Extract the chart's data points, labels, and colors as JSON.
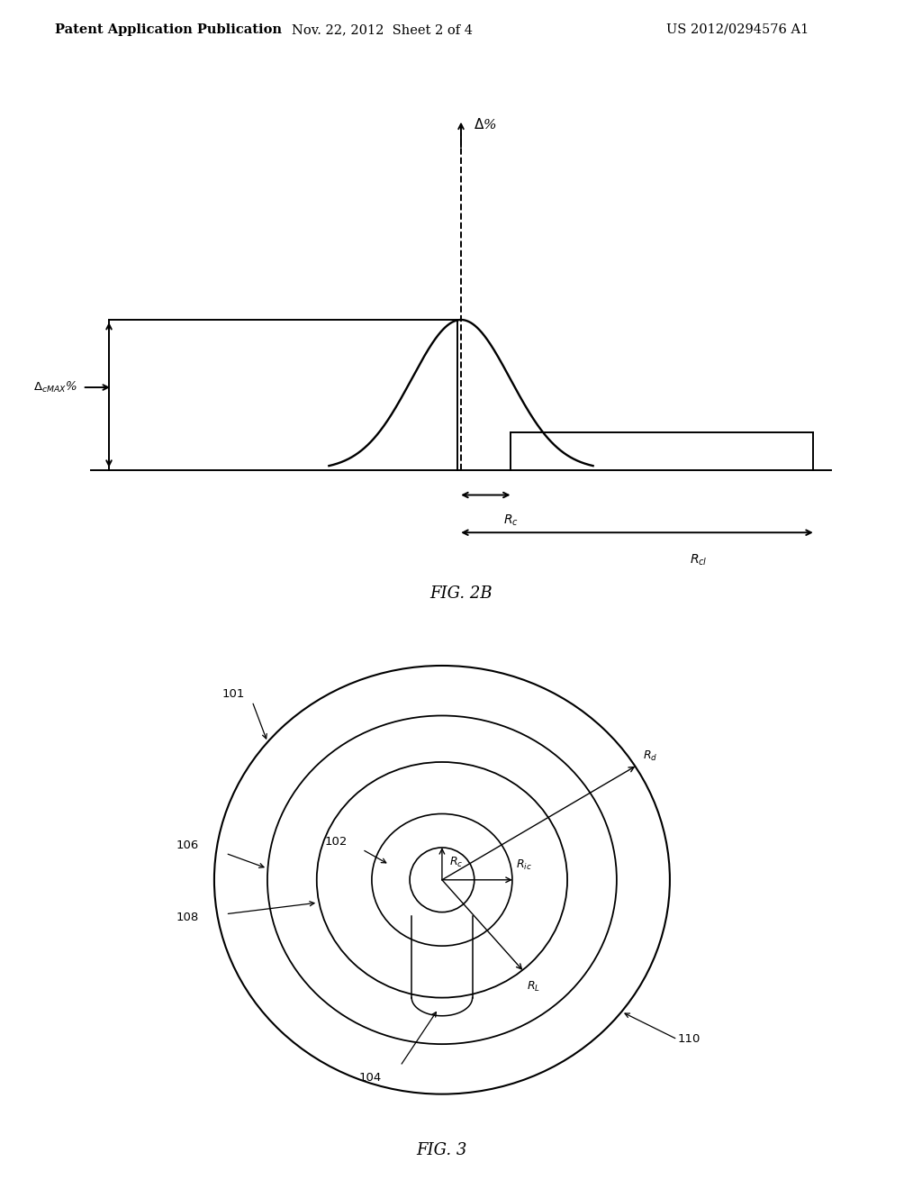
{
  "bg_color": "#ffffff",
  "header_text": "Patent Application Publication",
  "header_date": "Nov. 22, 2012  Sheet 2 of 4",
  "header_patent": "US 2012/0294576 A1",
  "header_fontsize": 11,
  "fig2b_label": "FIG. 2B",
  "fig3_label": "FIG. 3"
}
